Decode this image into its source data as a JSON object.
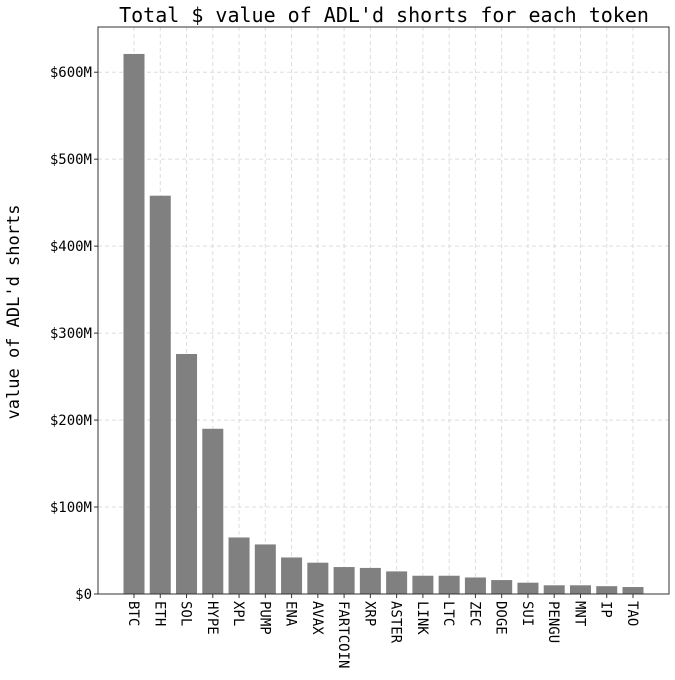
{
  "chart_data": {
    "type": "bar",
    "title": "Total $ value of ADL'd shorts for each token",
    "xlabel": "",
    "ylabel": "value of ADL'd shorts",
    "categories": [
      "BTC",
      "ETH",
      "SOL",
      "HYPE",
      "XPL",
      "PUMP",
      "ENA",
      "AVAX",
      "FARTCOIN",
      "XRP",
      "ASTER",
      "LINK",
      "LTC",
      "ZEC",
      "DOGE",
      "SUI",
      "PENGU",
      "MNT",
      "IP",
      "TAO"
    ],
    "values": [
      621,
      458,
      276,
      190,
      65,
      57,
      42,
      36,
      31,
      30,
      26,
      21,
      21,
      19,
      16,
      13,
      10,
      10,
      9,
      8
    ],
    "value_unit": "$M",
    "yticks": [
      0,
      100,
      200,
      300,
      400,
      500,
      600
    ],
    "ytick_labels": [
      "$0",
      "$100M",
      "$200M",
      "$300M",
      "$400M",
      "$500M",
      "$600M"
    ],
    "ylim": [
      0,
      652
    ],
    "grid": true,
    "bar_color": "#808080",
    "grid_color": "#dddddd"
  }
}
